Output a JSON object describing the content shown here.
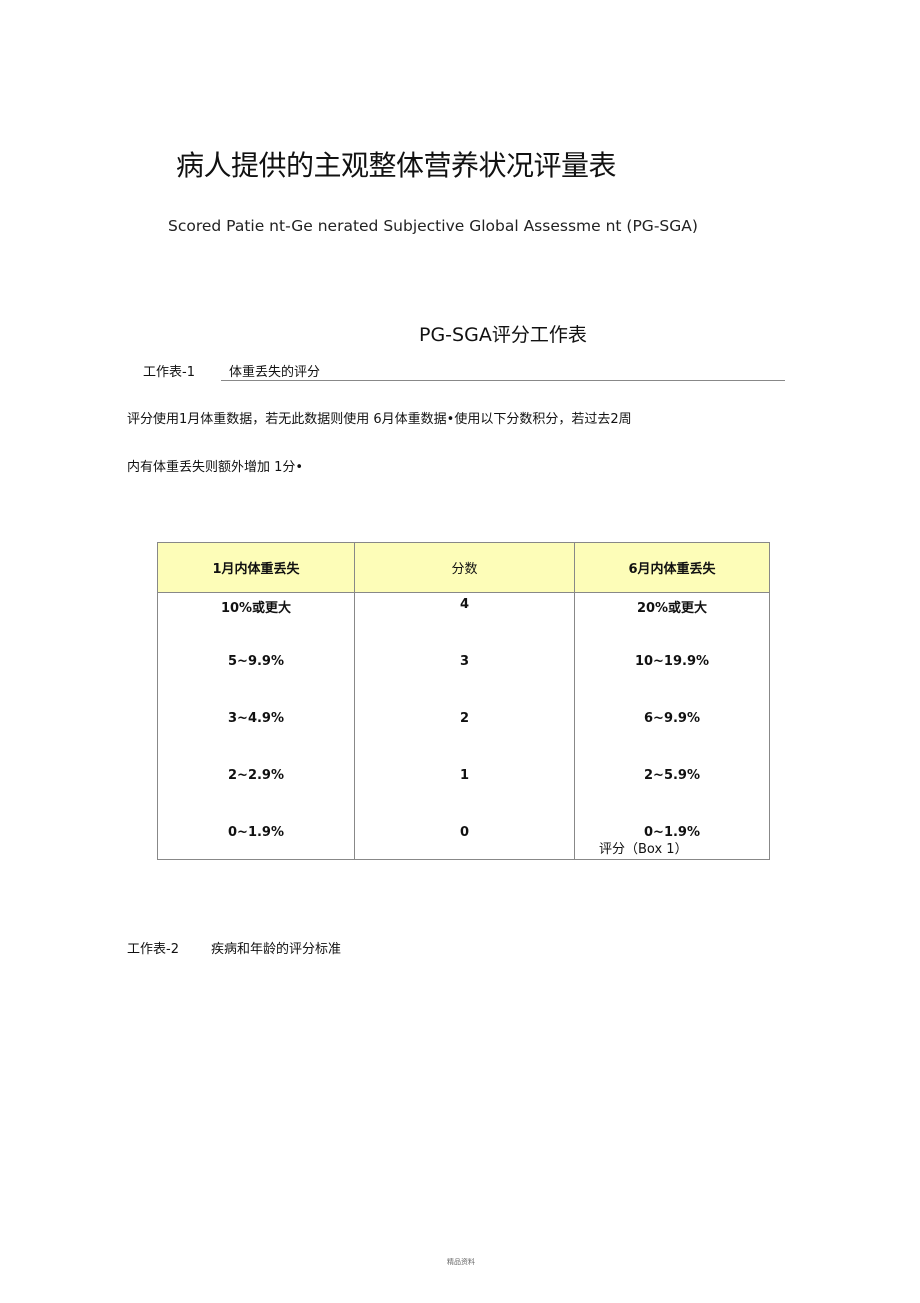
{
  "title": "病人提供的主观整体营养状况评量表",
  "subtitle": "Scored Patie nt-Ge nerated Subjective Global Assessme nt (PG-SGA)",
  "sheet_title": "PG-SGA评分工作表",
  "worksheet1": {
    "label": "工作表-1",
    "name": "体重丢失的评分",
    "paragraph_line1": "评分使用1月体重数据，若无此数据则使用 6月体重数据•使用以下分数积分，若过去2周",
    "paragraph_line2": "内有体重丢失则额外增加 1分•",
    "table": {
      "headers": [
        "1月内体重丢失",
        "分数",
        "6月内体重丢失"
      ],
      "rows": [
        [
          "10%或更大",
          "4",
          "20%或更大"
        ],
        [
          "5~9.9%",
          "3",
          "10~19.9%"
        ],
        [
          "3~4.9%",
          "2",
          "6~9.9%"
        ],
        [
          "2~2.9%",
          "1",
          "2~5.9%"
        ],
        [
          "0~1.9%",
          "0",
          "0~1.9%"
        ]
      ],
      "header_bg": "#fdfdb8"
    },
    "score_label": "评分（Box 1）"
  },
  "worksheet2": {
    "label": "工作表-2",
    "name": "疾病和年龄的评分标准"
  },
  "footer": "精品资料"
}
